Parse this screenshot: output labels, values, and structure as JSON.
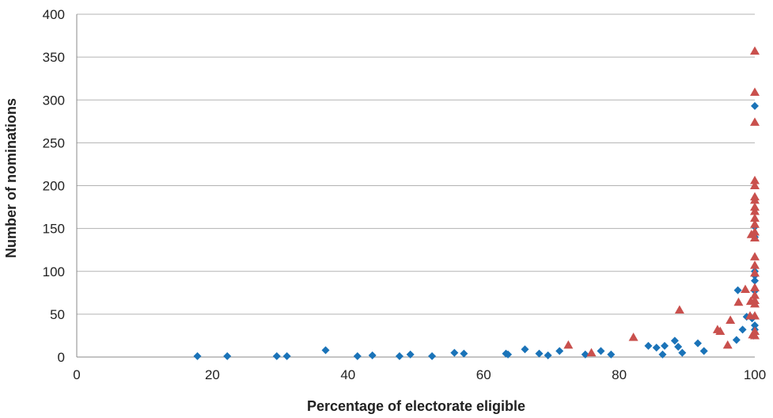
{
  "chart_data": {
    "type": "scatter",
    "title": "",
    "xlabel": "Percentage of electorate eligible",
    "ylabel": "Number of nominations",
    "xlim": [
      0,
      100
    ],
    "ylim": [
      0,
      400
    ],
    "x_ticks": [
      0,
      20,
      40,
      60,
      80,
      100
    ],
    "y_ticks": [
      0,
      50,
      100,
      150,
      200,
      250,
      300,
      350,
      400
    ],
    "grid": "horizontal",
    "legend": "none",
    "colors": {
      "diamond_series": "#1a73b8",
      "triangle_series": "#c9504d",
      "grid": "#b3b3b3",
      "axis": "#888888"
    },
    "series": [
      {
        "marker": "diamond",
        "color": "#1a73b8",
        "points": [
          [
            17.8,
            1
          ],
          [
            22.2,
            1
          ],
          [
            29.5,
            1
          ],
          [
            31.0,
            1
          ],
          [
            36.7,
            8
          ],
          [
            41.4,
            1
          ],
          [
            43.6,
            2
          ],
          [
            47.6,
            1
          ],
          [
            49.2,
            3
          ],
          [
            52.4,
            1
          ],
          [
            55.7,
            5
          ],
          [
            57.1,
            4
          ],
          [
            63.3,
            4
          ],
          [
            63.6,
            3
          ],
          [
            66.1,
            9
          ],
          [
            68.2,
            4
          ],
          [
            69.5,
            2
          ],
          [
            71.2,
            7
          ],
          [
            75.0,
            3
          ],
          [
            77.3,
            7
          ],
          [
            78.8,
            3
          ],
          [
            84.3,
            13
          ],
          [
            85.5,
            11
          ],
          [
            86.4,
            3
          ],
          [
            86.7,
            13
          ],
          [
            88.2,
            19
          ],
          [
            88.7,
            12
          ],
          [
            89.3,
            5
          ],
          [
            91.6,
            16
          ],
          [
            92.5,
            7
          ],
          [
            97.3,
            20
          ],
          [
            97.5,
            78
          ],
          [
            98.2,
            32
          ],
          [
            98.8,
            47
          ],
          [
            99.6,
            45
          ],
          [
            99.8,
            25
          ],
          [
            100,
            293
          ],
          [
            100,
            152
          ],
          [
            100,
            140
          ],
          [
            100,
            100
          ],
          [
            100,
            95
          ],
          [
            100,
            89
          ],
          [
            100,
            77
          ],
          [
            100,
            37
          ],
          [
            100,
            32
          ]
        ]
      },
      {
        "marker": "triangle",
        "color": "#c9504d",
        "points": [
          [
            72.5,
            14
          ],
          [
            75.9,
            5
          ],
          [
            82.1,
            23
          ],
          [
            88.9,
            55
          ],
          [
            94.5,
            32
          ],
          [
            94.9,
            30
          ],
          [
            96.0,
            14
          ],
          [
            96.4,
            43
          ],
          [
            97.6,
            64
          ],
          [
            98.6,
            79
          ],
          [
            99.3,
            48
          ],
          [
            99.4,
            65
          ],
          [
            99.5,
            143
          ],
          [
            99.7,
            26
          ],
          [
            100,
            357
          ],
          [
            100,
            309
          ],
          [
            100,
            274
          ],
          [
            100,
            206
          ],
          [
            100,
            200
          ],
          [
            100,
            187
          ],
          [
            100,
            183
          ],
          [
            100,
            175
          ],
          [
            100,
            170
          ],
          [
            100,
            162
          ],
          [
            100,
            155
          ],
          [
            100,
            146
          ],
          [
            100,
            139
          ],
          [
            100,
            117
          ],
          [
            100,
            107
          ],
          [
            100,
            98
          ],
          [
            100,
            81
          ],
          [
            100,
            72
          ],
          [
            100,
            66
          ],
          [
            100,
            62
          ],
          [
            100,
            48
          ],
          [
            100,
            30
          ],
          [
            100,
            25
          ]
        ]
      }
    ]
  }
}
